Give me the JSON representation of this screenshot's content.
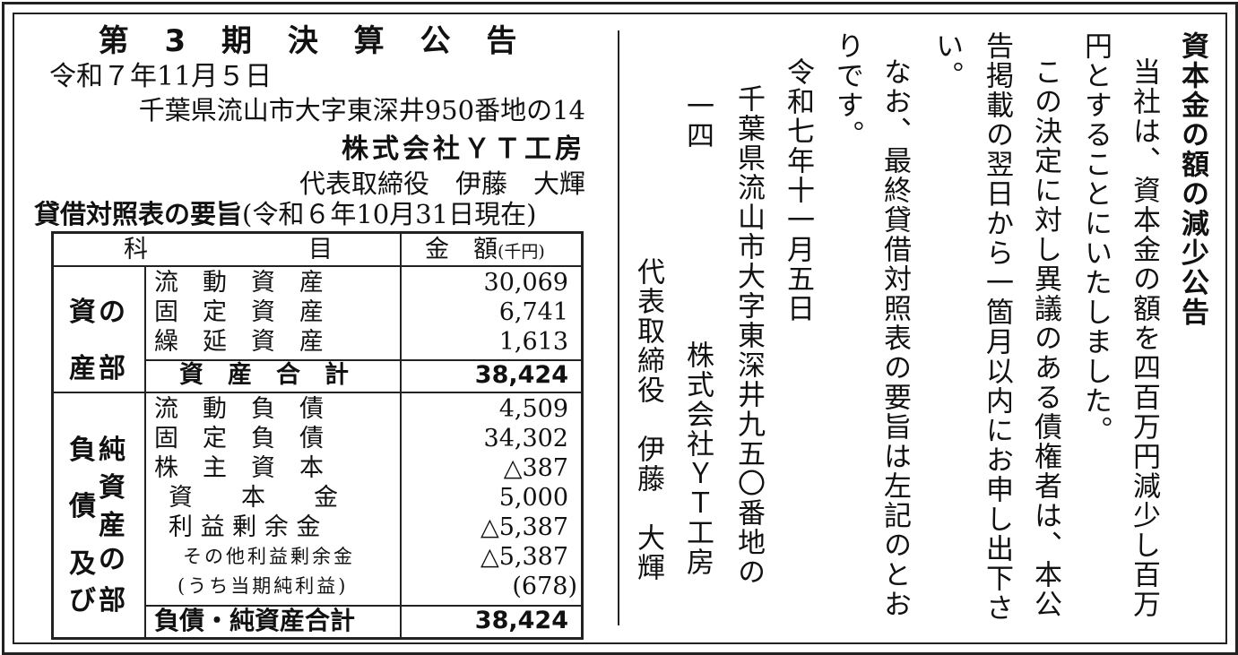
{
  "left": {
    "title": "第 3 期 決 算 公 告",
    "date": "令和７年11月５日",
    "address": "千葉県流山市大字東深井950番地の14",
    "company": "株式会社ＹＴ工房",
    "representative": "代表取締役　伊藤　大輝",
    "bs_heading": "貸借対照表の要旨",
    "bs_date": "(令和６年10月31日現在)",
    "table": {
      "header_item_a": "科",
      "header_item_b": "目",
      "header_amount": "金　額",
      "header_unit": "(千円)",
      "assets_section_chars": [
        "資",
        "の",
        "産",
        "部"
      ],
      "assets": [
        {
          "label": "流　動　資　産",
          "value": "30,069"
        },
        {
          "label": "固　定　資　産",
          "value": "6,741"
        },
        {
          "label": "繰　延　資　産",
          "value": "1,613"
        }
      ],
      "assets_total": {
        "label": "資　産　合　計",
        "value": "38,424"
      },
      "liab_section_chars": [
        "負",
        "純",
        "資",
        "債",
        "産",
        "及",
        "の",
        "び",
        "部"
      ],
      "liabilities": [
        {
          "label": "流　動　負　債",
          "value": "4,509"
        },
        {
          "label": "固　定　負　債",
          "value": "34,302"
        },
        {
          "label": "株　主　資　本",
          "value": "△387"
        },
        {
          "label": "資　　本　　金",
          "value": "5,000"
        },
        {
          "label": "利 益 剰 余 金",
          "value": "△5,387"
        },
        {
          "label": "その他利益剰余金",
          "value": "△5,387"
        },
        {
          "label": "(うち当期純利益)",
          "value": "(678)"
        }
      ],
      "liab_total": {
        "label": "負債・純資産合計",
        "value": "38,424"
      }
    }
  },
  "right": {
    "title": "資本金の額の減少公告",
    "lines": [
      "当社は、資本金の額を四百万円減少し百万",
      "円とすることにいたしました。",
      "この決定に対し異議のある債権者は、本公",
      "告掲載の翌日から一箇月以内にお申し出下さ",
      "い。",
      "なお、最終貸借対照表の要旨は左記のとお",
      "りです。",
      "令和七年十一月五日",
      "千葉県流山市大字東深井九五〇番地の",
      "一四",
      "株式会社ＹＴ工房",
      "代表取締役　伊藤　大輝"
    ]
  }
}
